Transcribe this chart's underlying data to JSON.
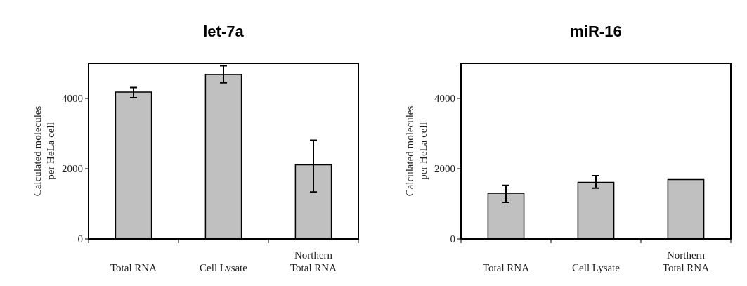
{
  "chart_data": [
    {
      "type": "bar",
      "title": "let-7a",
      "ylabel": "Calculated molecules\nper HeLa cell",
      "categories": [
        "Total RNA",
        "Cell Lysate",
        "Northern Total RNA"
      ],
      "values": [
        4180,
        4680,
        2110
      ],
      "errors": [
        [
          4020,
          4310
        ],
        [
          4445,
          4930
        ],
        [
          1335,
          2810
        ]
      ],
      "color": "#c0c0c0",
      "ylim": [
        0,
        5000
      ],
      "yticks": [
        0,
        2000,
        4000
      ],
      "grid": false
    },
    {
      "type": "bar",
      "title": "miR-16",
      "ylabel": "Calculated molecules\nper HeLa cell",
      "categories": [
        "Total RNA",
        "Cell Lysate",
        "Northern Total RNA"
      ],
      "values": [
        1300,
        1610,
        1690
      ],
      "errors": [
        [
          1040,
          1525
        ],
        [
          1445,
          1800
        ],
        null
      ],
      "color": "#c0c0c0",
      "ylim": [
        0,
        5000
      ],
      "yticks": [
        0,
        2000,
        4000
      ],
      "grid": false
    }
  ]
}
